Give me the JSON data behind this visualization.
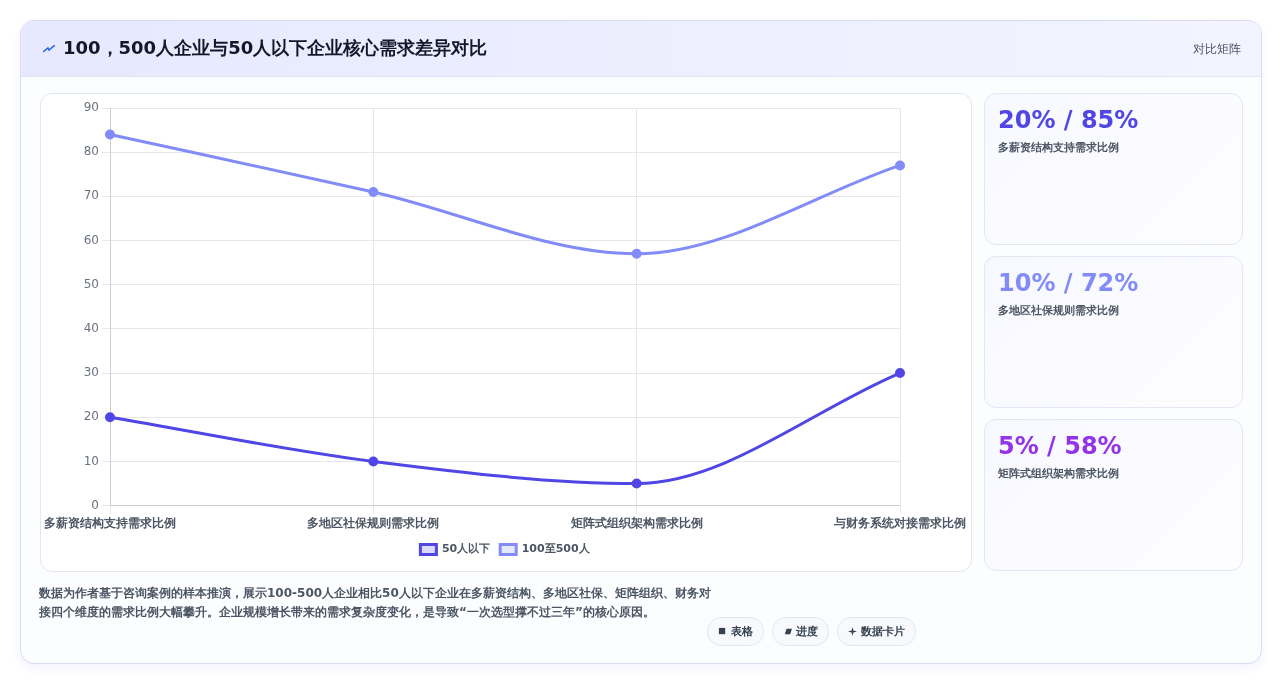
{
  "chart_data": [
    {
      "type": "line",
      "title": "100，500人企业与50人以下企业核心需求差异对比",
      "categories": [
        "多薪资结构支持需求比例",
        "多地区社保规则需求比例",
        "矩阵式组织架构需求比例",
        "与财务系统对接需求比例"
      ],
      "series": [
        {
          "name": "50人以下",
          "color": "#4f46e5",
          "values": [
            20,
            10,
            5,
            30
          ]
        },
        {
          "name": "100至500人",
          "color": "#818cf8",
          "values": [
            84,
            71,
            57,
            77
          ]
        }
      ],
      "ylim": [
        0,
        90
      ],
      "yticks": [
        0,
        10,
        20,
        30,
        40,
        50,
        60,
        70,
        80,
        90
      ],
      "grid": true,
      "legend": "bottom",
      "marker": "circle",
      "line_style": "solid",
      "annotations": [
        "数据为作者基于咨询案例的样本推演，展示100-500人企业相比50人以下企业在多薪资结构、多地区社保、矩阵组织、财务对接四个维度的需求比例大幅攀升。企业规模增长带来的需求复杂度变化，是导致“一次选型撑不过三年”的核心原因。",
        "对比矩阵",
        "表格",
        "进度",
        "数据卡片"
      ]
    },
    {
      "type": "other",
      "annotations": [
        "20% / 85%",
        "多薪资结构支持需求比例",
        "10% / 72%",
        "多地区社保规则需求比例",
        "5% / 58%",
        "矩阵式组织架构需求比例"
      ],
      "colors": [
        "#4f46e5",
        "#818cf8",
        "#9333ea"
      ]
    }
  ]
}
